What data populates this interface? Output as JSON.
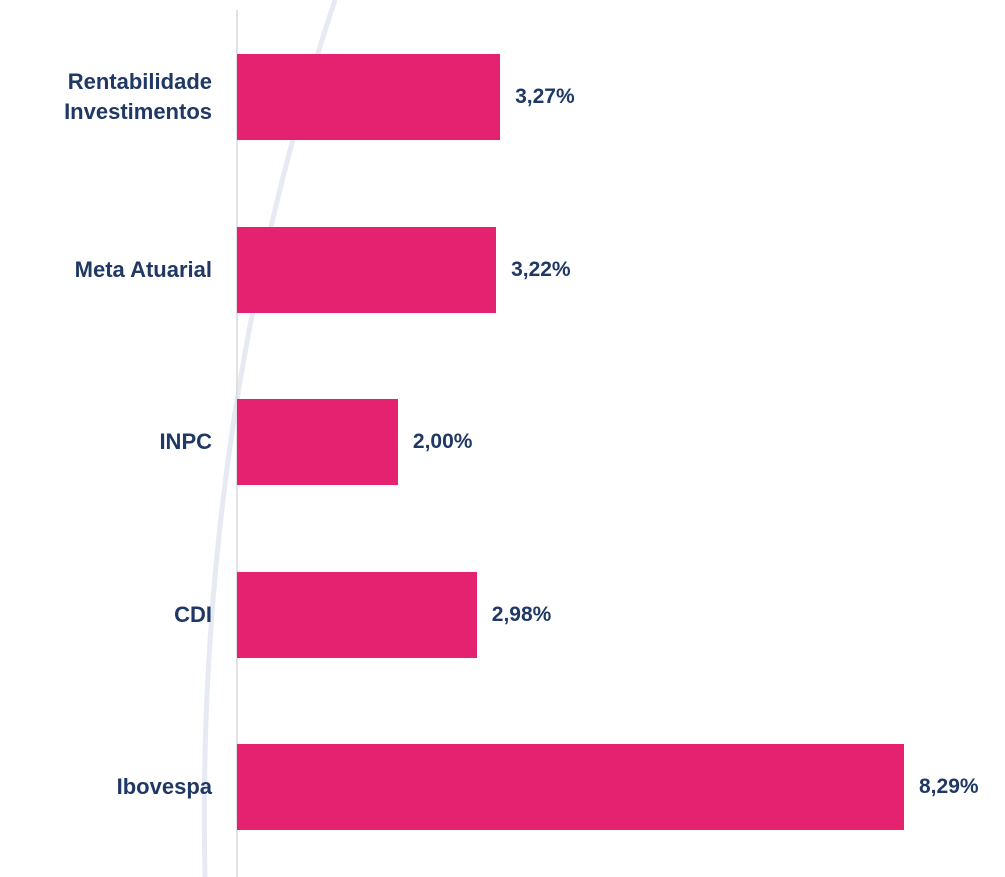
{
  "chart_data": {
    "type": "bar",
    "orientation": "horizontal",
    "categories": [
      "Rentabilidade Investimentos",
      "Meta Atuarial",
      "INPC",
      "CDI",
      "Ibovespa"
    ],
    "values": [
      3.27,
      3.22,
      2.0,
      2.98,
      8.29
    ],
    "value_labels": [
      "3,27%",
      "3,22%",
      "2,00%",
      "2,98%",
      "8,29%"
    ],
    "color": "#e4226f"
  }
}
